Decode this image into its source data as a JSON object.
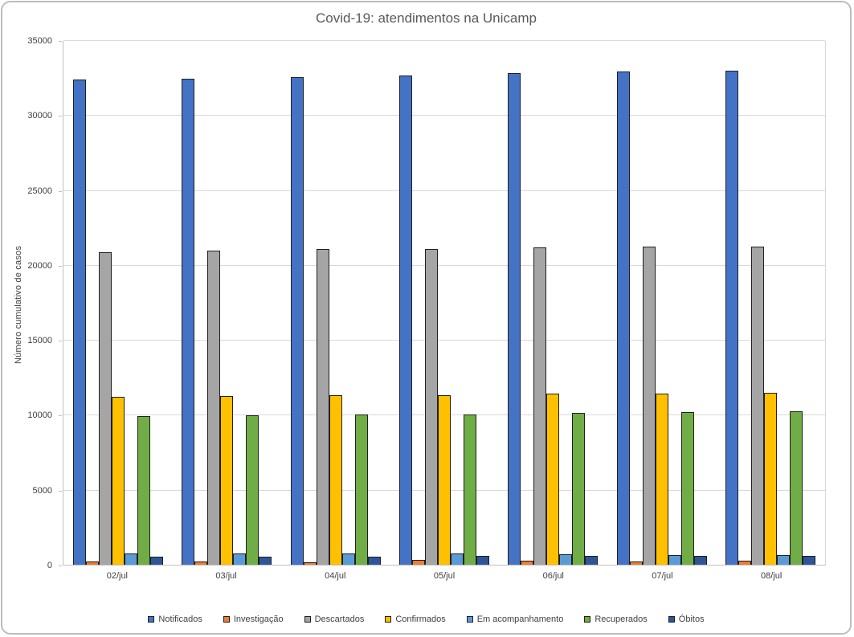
{
  "chart_data": {
    "type": "bar",
    "title": "Covid-19: atendimentos na Unicamp",
    "xlabel": "",
    "ylabel": "Número  cumulativo de casos",
    "ylim": [
      0,
      35000
    ],
    "ytick_step": 5000,
    "yticks": [
      0,
      5000,
      10000,
      15000,
      20000,
      25000,
      30000,
      35000
    ],
    "grid": true,
    "legend_position": "bottom",
    "bar_border_color": "#1f1f1f",
    "categories": [
      "02/jul",
      "03/jul",
      "04/jul",
      "05/jul",
      "06/jul",
      "07/jul",
      "08/jul"
    ],
    "series": [
      {
        "name": "Notificados",
        "color": "#4472c4",
        "values": [
          32400,
          32450,
          32520,
          32650,
          32800,
          32930,
          32960
        ]
      },
      {
        "name": "Investigação",
        "color": "#ed7d31",
        "values": [
          210,
          210,
          150,
          300,
          250,
          210,
          280
        ]
      },
      {
        "name": "Descartados",
        "color": "#a5a5a5",
        "values": [
          20850,
          20950,
          21050,
          21060,
          21150,
          21200,
          21250
        ]
      },
      {
        "name": "Confirmados",
        "color": "#ffc000",
        "values": [
          11220,
          11270,
          11290,
          11330,
          11410,
          11440,
          11480
        ]
      },
      {
        "name": "Em acompanhamento",
        "color": "#5b9bd5",
        "values": [
          760,
          750,
          740,
          730,
          690,
          660,
          630
        ]
      },
      {
        "name": "Recuperados",
        "color": "#70ad47",
        "values": [
          9930,
          9970,
          10000,
          10020,
          10120,
          10200,
          10250
        ]
      },
      {
        "name": "Óbitos",
        "color": "#2e5597",
        "values": [
          560,
          560,
          560,
          565,
          565,
          570,
          575
        ]
      }
    ]
  },
  "frame": {
    "border_color": "#bdbdbd",
    "title_color": "#595959",
    "label_color": "#404040",
    "gridline_color": "#d9d9d9",
    "axis_color": "#bfbfbf"
  }
}
